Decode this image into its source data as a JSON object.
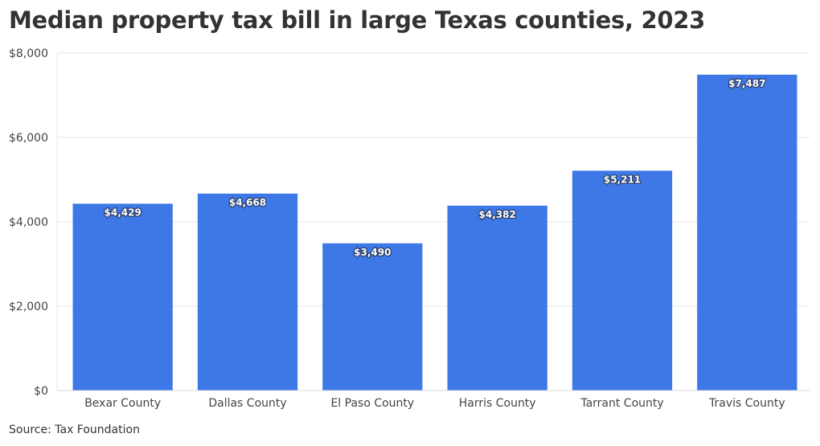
{
  "chart_data": {
    "type": "bar",
    "title": "Median property tax bill in large Texas counties, 2023",
    "source": "Source: Tax Foundation",
    "categories": [
      "Bexar County",
      "Dallas County",
      "El Paso County",
      "Harris County",
      "Tarrant County",
      "Travis County"
    ],
    "values": [
      4429,
      4668,
      3490,
      4382,
      5211,
      7487
    ],
    "value_labels": [
      "$4,429",
      "$4,668",
      "$3,490",
      "$4,382",
      "$5,211",
      "$7,487"
    ],
    "yticks": [
      0,
      2000,
      4000,
      6000,
      8000
    ],
    "ytick_labels": [
      "$0",
      "$2,000",
      "$4,000",
      "$6,000",
      "$8,000"
    ],
    "ylim": [
      0,
      8000
    ],
    "xlabel": "",
    "ylabel": "",
    "grid": true,
    "legend": "none",
    "bar_color": "#3d78e6"
  }
}
